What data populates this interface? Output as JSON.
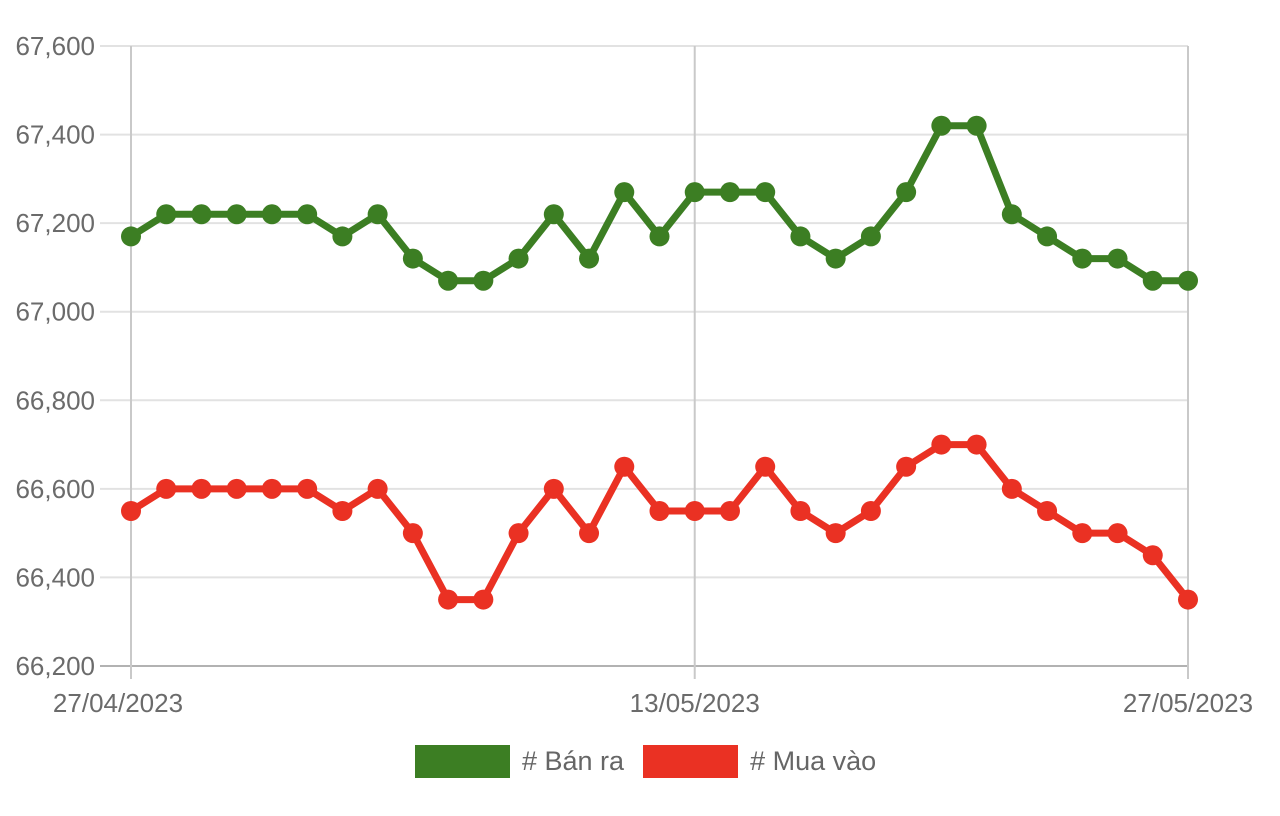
{
  "chart_data": {
    "type": "line",
    "title": "",
    "xlabel": "",
    "ylabel": "",
    "grid": true,
    "legend_position": "bottom",
    "n_points": 31,
    "x_tick_labels": [
      "27/04/2023",
      "13/05/2023",
      "27/05/2023"
    ],
    "x_tick_indices": [
      0,
      16,
      30
    ],
    "y_ticks": [
      66200,
      66400,
      66600,
      66800,
      67000,
      67200,
      67400,
      67600
    ],
    "ylim": [
      66200,
      67600
    ],
    "series": [
      {
        "name": "# Bán ra",
        "color": "#3C7E23",
        "values": [
          67170,
          67220,
          67220,
          67220,
          67220,
          67220,
          67170,
          67220,
          67120,
          67070,
          67070,
          67120,
          67220,
          67120,
          67270,
          67170,
          67270,
          67270,
          67270,
          67170,
          67120,
          67170,
          67270,
          67420,
          67420,
          67220,
          67170,
          67120,
          67120,
          67070,
          67070
        ]
      },
      {
        "name": "# Mua vào",
        "color": "#EA3123",
        "values": [
          66550,
          66600,
          66600,
          66600,
          66600,
          66600,
          66550,
          66600,
          66500,
          66350,
          66350,
          66500,
          66600,
          66500,
          66650,
          66550,
          66550,
          66550,
          66650,
          66550,
          66500,
          66550,
          66650,
          66700,
          66700,
          66600,
          66550,
          66500,
          66500,
          66450,
          66350
        ]
      }
    ]
  },
  "colors": {
    "axis_text": "#6b6b6b",
    "legend_text": "#666666",
    "gridline": "#e2e2e2",
    "axis_baseline": "#b2b2b2",
    "vertical_gridline": "#c9c9c9"
  }
}
